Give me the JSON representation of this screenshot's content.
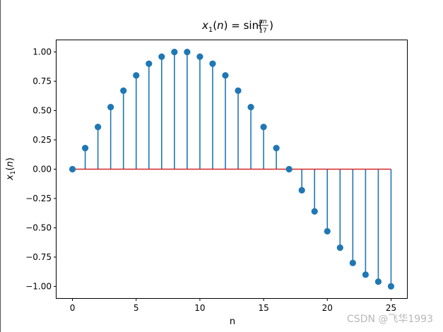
{
  "chart_data": {
    "type": "stem",
    "title": "x₁(n) = sin(πn/17)",
    "xlabel": "n",
    "ylabel": "x₁(n)",
    "xlim": [
      -1.25,
      26.25
    ],
    "ylim": [
      -1.1,
      1.1
    ],
    "xticks": [
      0,
      5,
      10,
      15,
      20,
      25
    ],
    "yticks": [
      -1.0,
      -0.75,
      -0.5,
      -0.25,
      0.0,
      0.25,
      0.5,
      0.75,
      1.0
    ],
    "xtick_labels": [
      "0",
      "5",
      "10",
      "15",
      "20",
      "25"
    ],
    "ytick_labels": [
      "−1.00",
      "−0.75",
      "−0.50",
      "−0.25",
      "0.00",
      "0.25",
      "0.50",
      "0.75",
      "1.00"
    ],
    "grid": false,
    "series": [
      {
        "x": [
          0,
          1,
          2,
          3,
          4,
          5,
          6,
          7,
          8,
          9,
          10,
          11,
          12,
          13,
          14,
          15,
          16,
          17,
          18,
          19,
          20,
          21,
          22,
          23,
          24,
          25
        ],
        "values": [
          0.0,
          0.18,
          0.36,
          0.53,
          0.67,
          0.8,
          0.9,
          0.96,
          1.0,
          1.0,
          0.96,
          0.9,
          0.8,
          0.67,
          0.53,
          0.36,
          0.18,
          0.0,
          -0.18,
          -0.36,
          -0.53,
          -0.67,
          -0.8,
          -0.9,
          -0.96,
          -1.0
        ]
      }
    ],
    "colors": {
      "stem": "#1f77b4",
      "marker": "#1f77b4",
      "baseline": "#d62728"
    }
  },
  "watermark": "CSDN @飞华1993"
}
